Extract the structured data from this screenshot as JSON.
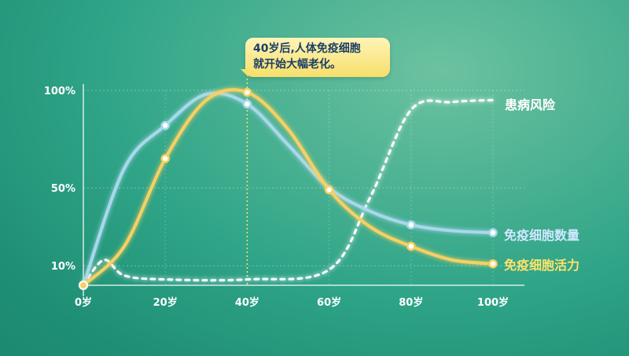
{
  "callout": {
    "line1": "40岁后,人体免疫细胞",
    "line2": "就开始大幅老化。"
  },
  "chart_data": {
    "type": "line",
    "x_ticks": [
      "0岁",
      "20岁",
      "40岁",
      "60岁",
      "80岁",
      "100岁"
    ],
    "y_ticks": [
      "10%",
      "50%",
      "100%"
    ],
    "xlim": [
      0,
      100
    ],
    "ylim": [
      0,
      100
    ],
    "series": [
      {
        "name": "免疫细胞数量",
        "color": "#a8d8ec",
        "x": [
          0,
          10,
          20,
          30,
          40,
          50,
          60,
          70,
          80,
          90,
          100
        ],
        "y": [
          0,
          60,
          82,
          98,
          93,
          72,
          50,
          38,
          31,
          28,
          27
        ],
        "markers": [
          20,
          40,
          80,
          100
        ]
      },
      {
        "name": "免疫细胞活力",
        "color": "#f6d063",
        "x": [
          0,
          10,
          20,
          30,
          40,
          50,
          60,
          70,
          80,
          90,
          100
        ],
        "y": [
          0,
          20,
          65,
          95,
          99,
          80,
          49,
          30,
          20,
          13,
          11
        ],
        "markers": [
          20,
          40,
          60,
          80,
          100
        ]
      },
      {
        "name": "患病风险",
        "color": "#ffffff",
        "style": "dashed",
        "x": [
          0,
          5,
          10,
          20,
          40,
          60,
          70,
          80,
          90,
          100
        ],
        "y": [
          0,
          13,
          5,
          3,
          3,
          8,
          45,
          90,
          94,
          95
        ],
        "markers": []
      }
    ]
  }
}
